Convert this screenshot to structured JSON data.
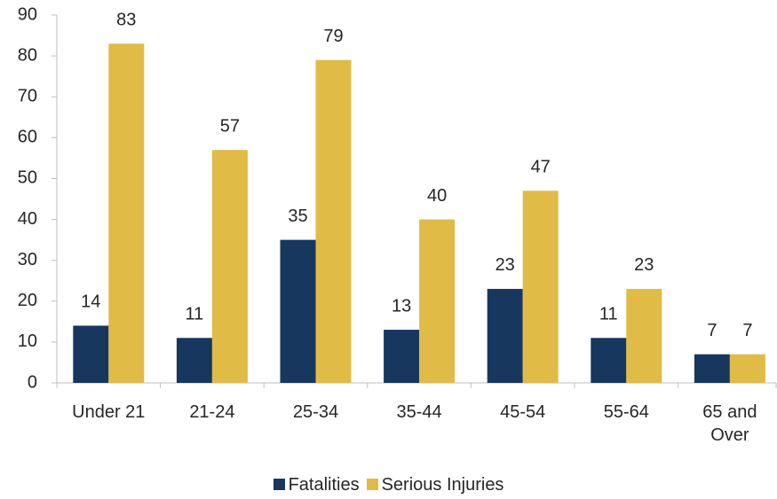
{
  "chart_data": {
    "type": "bar",
    "categories": [
      "Under 21",
      "21-24",
      "25-34",
      "35-44",
      "45-54",
      "55-64",
      "65 and Over"
    ],
    "series": [
      {
        "name": "Fatalities",
        "color": "#17375e",
        "values": [
          14,
          11,
          35,
          13,
          23,
          11,
          7
        ]
      },
      {
        "name": "Serious Injuries",
        "color": "#e0bb46",
        "values": [
          83,
          57,
          79,
          40,
          47,
          23,
          7
        ]
      }
    ],
    "ylim": [
      0,
      90
    ],
    "yticks": [
      0,
      10,
      20,
      30,
      40,
      50,
      60,
      70,
      80,
      90
    ],
    "legend": "bottom"
  }
}
